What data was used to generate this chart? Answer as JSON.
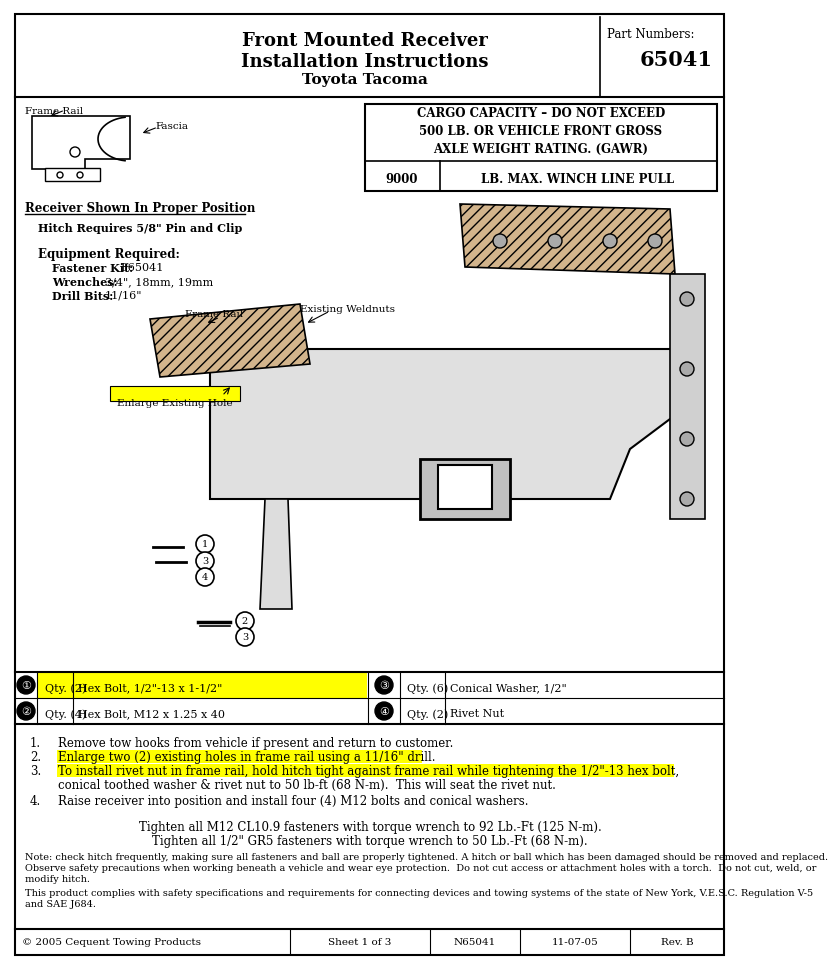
{
  "title_main": "Front Mounted Receiver",
  "title_sub": "Installation Instructions",
  "title_model": "Toyota Tacoma",
  "part_numbers_label": "Part Numbers:",
  "part_number": "65041",
  "cargo_warning_lines": [
    "CARGO CAPACITY – DO NOT EXCEED",
    "500 LB. OR VEHICLE FRONT GROSS",
    "AXLE WEIGHT RATING. (GAWR)"
  ],
  "winch_value": "9000",
  "winch_label": "LB. MAX. WINCH LINE PULL",
  "receiver_label": "Receiver Shown In Proper Position",
  "hitch_note": "Hitch Requires 5/8\" Pin and Clip",
  "equipment_required": "Equipment Required:",
  "fastener_kit_label": "Fastener Kit:",
  "fastener_kit_val": "F65041",
  "wrenches_label": "Wrenches:",
  "wrenches_val": "3/4\", 18mm, 19mm",
  "drill_bits_label": "Drill Bits:",
  "drill_bits_val": "11/16\"",
  "torque_lines": [
    "Tighten all M12 CL10.9 fasteners with torque wrench to 92 Lb.-Ft (125 N-m).",
    "Tighten all 1/2\" GR5 fasteners with torque wrench to 50 Lb.-Ft (68 N-m)."
  ],
  "note_line1": "Note: check hitch frequently, making sure all fasteners and ball are properly tightened. A hitch or ball which has been damaged should be removed and replaced.",
  "note_line2": "Observe safety precautions when working beneath a vehicle and wear eye protection.  Do not cut access or attachment holes with a torch.  Do not cut, weld, or",
  "note_line3": "modify hitch.",
  "compliance_line1": "This product complies with safety specifications and requirements for connecting devices and towing systems of the state of New York, V.E.S.C. Regulation V-5",
  "compliance_line2": "and SAE J684.",
  "footer_copyright": "© 2005 Cequent Towing Products",
  "footer_sheet": "Sheet 1 of 3",
  "footer_part": "N65041",
  "footer_date": "11-07-05",
  "footer_rev": "Rev. B",
  "highlight_yellow": "#FFFF00",
  "bg_color": "#FFFFFF",
  "border_color": "#000000",
  "text_color": "#000000"
}
